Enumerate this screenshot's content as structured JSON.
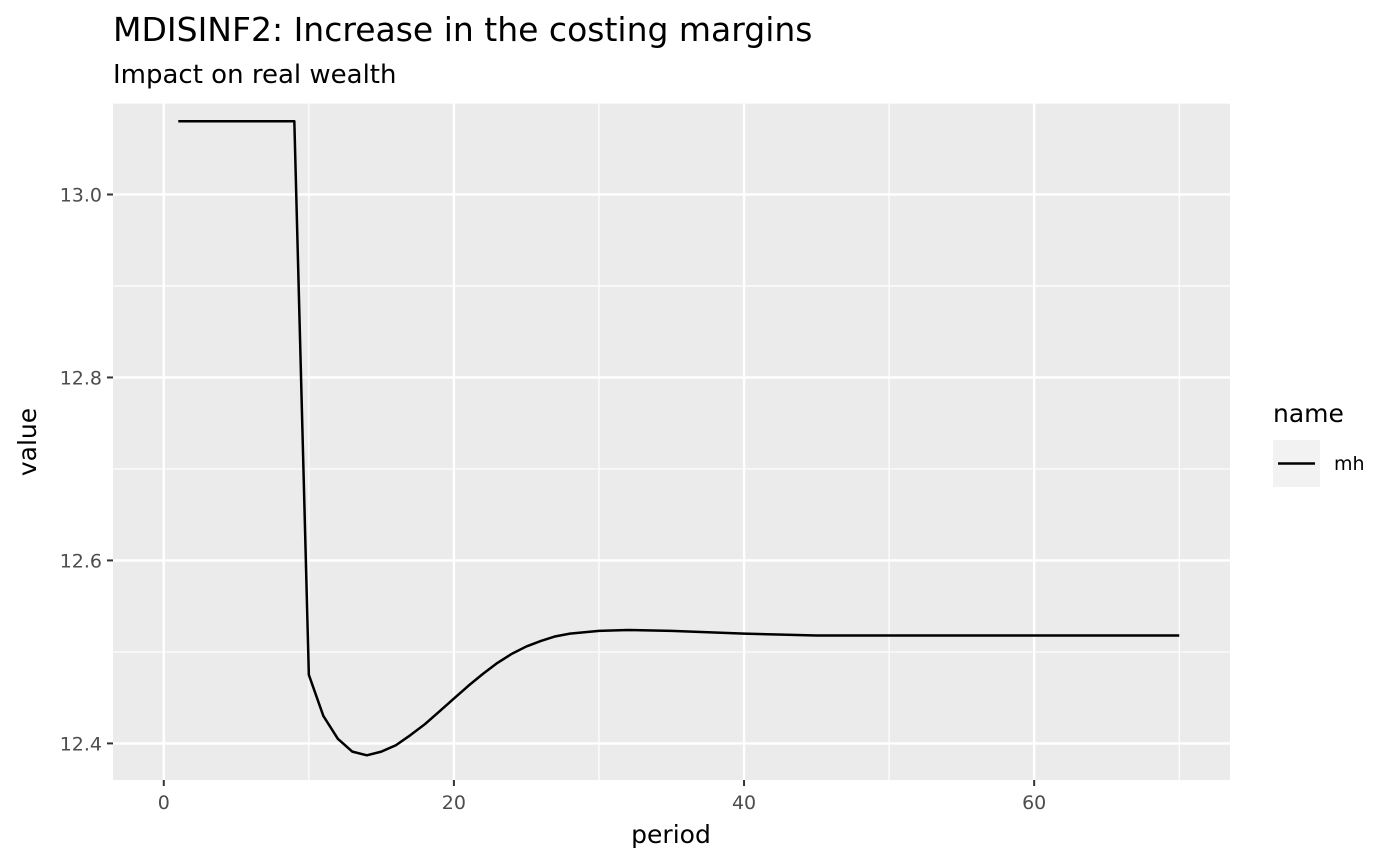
{
  "chart_data": {
    "type": "line",
    "title": "MDISINF2: Increase in the costing margins",
    "subtitle": "Impact on real wealth",
    "xlabel": "period",
    "ylabel": "value",
    "xlim": [
      -3.5,
      73.5
    ],
    "ylim": [
      12.36,
      13.1
    ],
    "x_ticks": [
      0,
      20,
      40,
      60
    ],
    "x_tick_labels": [
      "0",
      "20",
      "40",
      "60"
    ],
    "y_ticks": [
      12.4,
      12.6,
      12.8,
      13.0
    ],
    "y_tick_labels": [
      "12.4",
      "12.6",
      "12.8",
      "13.0"
    ],
    "grid": true,
    "legend": {
      "title": "name",
      "placement": "right"
    },
    "series": [
      {
        "name": "mh",
        "color": "#000000",
        "x": [
          1,
          9,
          10,
          11,
          12,
          13,
          14,
          15,
          16,
          17,
          18,
          19,
          20,
          21,
          22,
          23,
          24,
          25,
          26,
          27,
          28,
          30,
          32,
          35,
          40,
          45,
          50,
          55,
          60,
          65,
          70
        ],
        "y": [
          13.08,
          13.08,
          12.475,
          12.43,
          12.405,
          12.391,
          12.387,
          12.391,
          12.398,
          12.409,
          12.421,
          12.435,
          12.449,
          12.463,
          12.476,
          12.488,
          12.498,
          12.506,
          12.512,
          12.517,
          12.52,
          12.523,
          12.524,
          12.523,
          12.52,
          12.518,
          12.518,
          12.518,
          12.518,
          12.518,
          12.518
        ]
      }
    ]
  }
}
